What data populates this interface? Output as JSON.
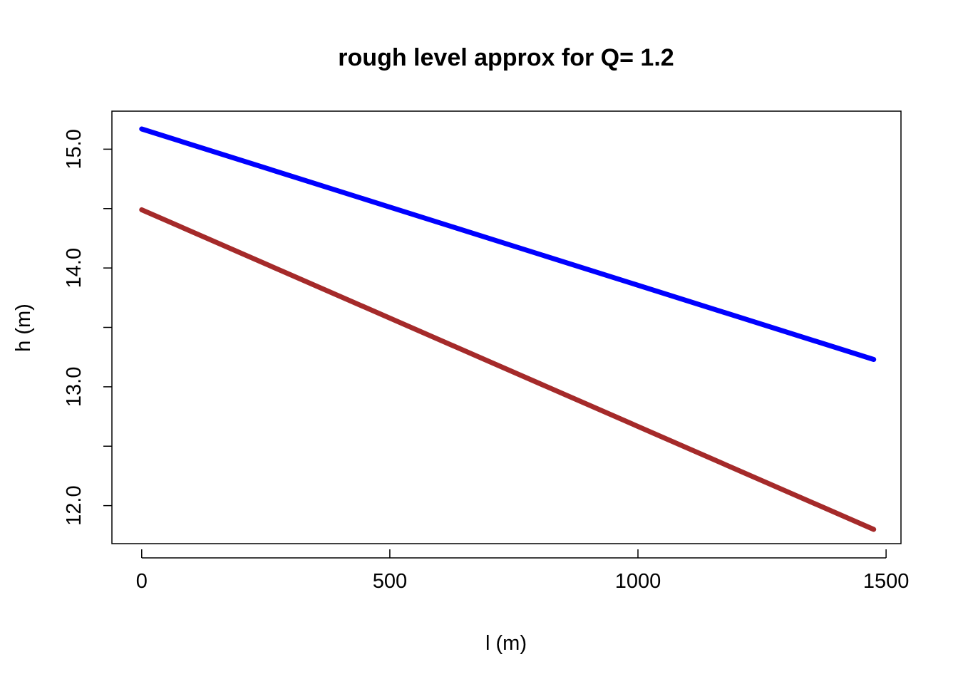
{
  "chart_data": {
    "type": "line",
    "title": "rough level approx for Q= 1.2",
    "xlabel": "l (m)",
    "ylabel": "h (m)",
    "xlim": [
      -60,
      1530
    ],
    "ylim": [
      11.68,
      15.32
    ],
    "x_ticks": [
      0,
      500,
      1000,
      1500
    ],
    "x_tick_labels": [
      "0",
      "500",
      "1000",
      "1500"
    ],
    "y_ticks": [
      12.0,
      12.5,
      13.0,
      13.5,
      14.0,
      14.5,
      15.0
    ],
    "y_tick_labels": [
      "12.0",
      "",
      "13.0",
      "",
      "14.0",
      "",
      "15.0"
    ],
    "grid": false,
    "legend": "none",
    "series": [
      {
        "color": "#0000FF",
        "x": [
          0,
          1475
        ],
        "y": [
          15.17,
          13.23
        ]
      },
      {
        "color": "#A52A2A",
        "x": [
          0,
          1475
        ],
        "y": [
          14.49,
          11.8
        ]
      }
    ]
  }
}
